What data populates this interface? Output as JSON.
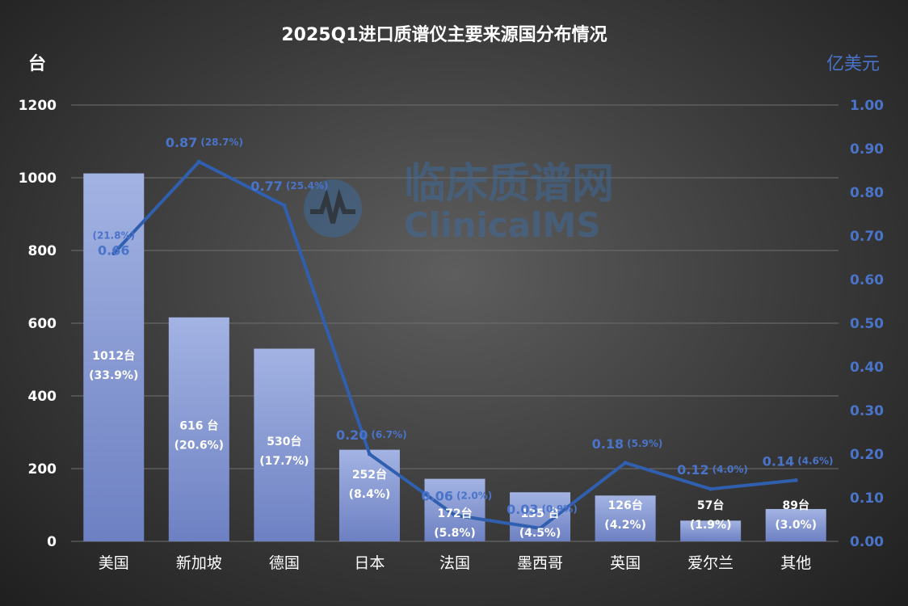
{
  "watermark": {
    "cn": "临床质谱网",
    "en": "ClinicalMS"
  },
  "colors": {
    "bar_top": "#a3b3e3",
    "bar_bottom": "#6d80c2",
    "line": "#2f5fae",
    "label_blue": "#4a74c9"
  },
  "chart_data": {
    "type": "bar",
    "title": "2025Q1进口质谱仪主要来源国分布情况",
    "left_unit": "台",
    "right_unit": "亿美元",
    "categories": [
      "美国",
      "新加坡",
      "德国",
      "日本",
      "法国",
      "墨西哥",
      "英国",
      "爱尔兰",
      "其他"
    ],
    "ylim": [
      0,
      1200
    ],
    "yticks": [
      "0",
      "200",
      "400",
      "600",
      "800",
      "1000",
      "1200"
    ],
    "y2lim": [
      0,
      1.0
    ],
    "y2ticks": [
      "0.00",
      "0.10",
      "0.20",
      "0.30",
      "0.40",
      "0.50",
      "0.60",
      "0.70",
      "0.80",
      "0.90",
      "1.00"
    ],
    "grid": true,
    "series": [
      {
        "kind": "bar",
        "axis": "left",
        "values": [
          1012,
          616,
          530,
          252,
          172,
          135,
          126,
          57,
          89
        ],
        "labels": [
          "1012台",
          "616 台",
          "530台",
          "252台",
          "172台",
          "135 台",
          "126台",
          "57台",
          "89台"
        ],
        "pct_labels": [
          "(33.9%)",
          "(20.6%)",
          "(17.7%)",
          "(8.4%)",
          "(5.8%)",
          "(4.5%)",
          "(4.2%)",
          "(1.9%)",
          "(3.0%)"
        ]
      },
      {
        "kind": "line",
        "axis": "right",
        "values": [
          0.66,
          0.87,
          0.77,
          0.2,
          0.06,
          0.03,
          0.18,
          0.12,
          0.14
        ],
        "labels": [
          "0.66",
          "0.87",
          "0.77",
          "0.20",
          "0.06",
          "0.03",
          "0.18",
          "0.12",
          "0.14"
        ],
        "pct_labels": [
          "(21.8%)",
          "(28.7%)",
          "(25.4%)",
          "(6.7%)",
          "(2.0%)",
          "(0.9%)",
          "(5.9%)",
          "(4.0%)",
          "(4.6%)"
        ]
      }
    ]
  }
}
